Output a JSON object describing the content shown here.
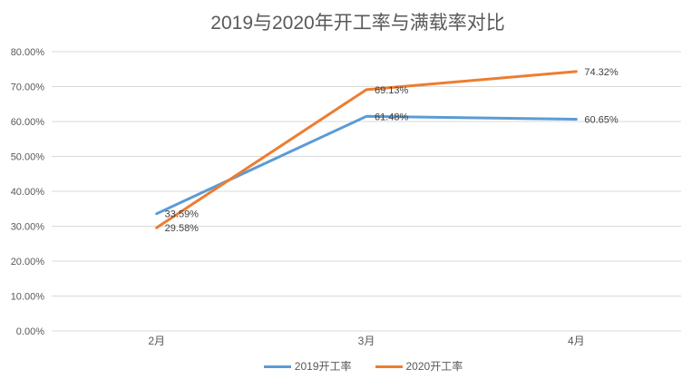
{
  "chart_data": {
    "type": "line",
    "title": "2019与2020年开工率与满载率对比",
    "categories": [
      "2月",
      "3月",
      "4月"
    ],
    "series": [
      {
        "name": "2019开工率",
        "color": "#5B9BD5",
        "values": [
          33.59,
          61.48,
          60.65
        ],
        "point_labels": [
          "33.59%",
          "61.48%",
          "60.65%"
        ]
      },
      {
        "name": "2020开工率",
        "color": "#ED7D31",
        "values": [
          29.58,
          69.13,
          74.32
        ],
        "point_labels": [
          "29.58%",
          "69.13%",
          "74.32%"
        ]
      }
    ],
    "xlabel": "",
    "ylabel": "",
    "ylim": [
      0,
      80
    ],
    "ytick_labels": [
      "0.00%",
      "10.00%",
      "20.00%",
      "30.00%",
      "40.00%",
      "50.00%",
      "60.00%",
      "70.00%",
      "80.00%"
    ],
    "grid": true,
    "legend_position": "bottom"
  },
  "colors": {
    "title_text": "#595959",
    "axis_label_text": "#595959",
    "gridline": "#D9D9D9",
    "data_label_text": "#404040",
    "background": "#FFFFFF"
  }
}
